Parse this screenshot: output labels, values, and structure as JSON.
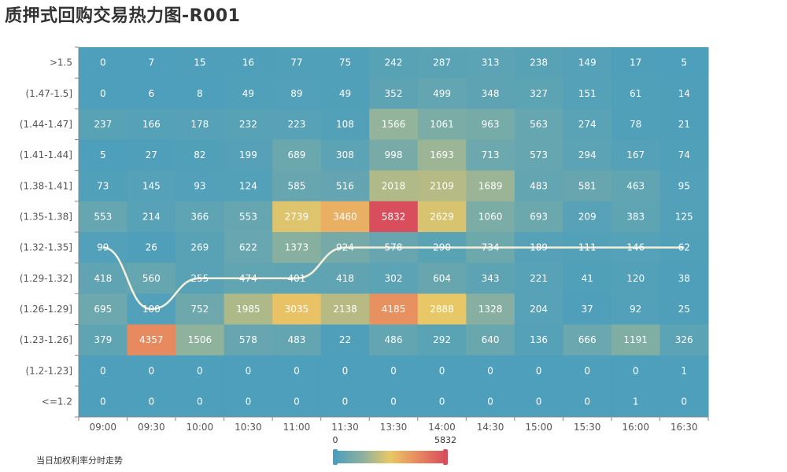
{
  "chart_data": {
    "type": "heatmap",
    "title": "质押式回购交易热力图-R001",
    "x_categories": [
      "09:00",
      "09:30",
      "10:00",
      "10:30",
      "11:00",
      "11:30",
      "13:30",
      "14:00",
      "14:30",
      "15:00",
      "15:30",
      "16:00",
      "16:30"
    ],
    "y_categories": [
      ">1.5",
      "(1.47-1.5]",
      "(1.44-1.47]",
      "(1.41-1.44]",
      "(1.38-1.41]",
      "(1.35-1.38]",
      "(1.32-1.35]",
      "(1.29-1.32]",
      "(1.26-1.29]",
      "(1.23-1.26]",
      "(1.2-1.23]",
      "<=1.2"
    ],
    "values": [
      [
        0,
        7,
        15,
        16,
        77,
        75,
        242,
        287,
        313,
        238,
        149,
        17,
        5
      ],
      [
        0,
        6,
        8,
        49,
        89,
        49,
        352,
        499,
        348,
        327,
        151,
        61,
        14
      ],
      [
        237,
        166,
        178,
        232,
        223,
        108,
        1566,
        1061,
        963,
        563,
        274,
        78,
        21
      ],
      [
        5,
        27,
        82,
        199,
        689,
        308,
        998,
        1693,
        713,
        573,
        294,
        167,
        74
      ],
      [
        73,
        145,
        93,
        124,
        585,
        516,
        2018,
        2109,
        1689,
        483,
        581,
        463,
        95
      ],
      [
        553,
        214,
        366,
        553,
        2739,
        3460,
        5832,
        2629,
        1060,
        693,
        209,
        383,
        125
      ],
      [
        99,
        26,
        269,
        622,
        1373,
        924,
        578,
        290,
        734,
        189,
        111,
        146,
        62
      ],
      [
        418,
        560,
        255,
        474,
        401,
        418,
        302,
        604,
        343,
        221,
        41,
        120,
        38
      ],
      [
        695,
        100,
        752,
        1985,
        3035,
        2138,
        4185,
        2888,
        1328,
        204,
        37,
        92,
        25
      ],
      [
        379,
        4357,
        1506,
        578,
        483,
        22,
        486,
        292,
        640,
        136,
        666,
        1191,
        326
      ],
      [
        0,
        0,
        0,
        0,
        0,
        0,
        0,
        0,
        0,
        0,
        0,
        0,
        1
      ],
      [
        0,
        0,
        0,
        0,
        0,
        0,
        0,
        0,
        0,
        0,
        0,
        1,
        0
      ]
    ],
    "visual_map": {
      "min": 0,
      "max": 5832,
      "min_label": "0",
      "max_label": "5832",
      "colors": [
        "#4e9fbb",
        "#8cb19e",
        "#e9c765",
        "#e8895f",
        "#d94e5d"
      ]
    },
    "line_series": {
      "name": "当日加权利率分时走势",
      "color": "#f5f0dc",
      "y_positions": [
        "(1.32-1.35]",
        "(1.26-1.29]",
        "(1.29-1.32]",
        "(1.29-1.32]",
        "(1.29-1.32]",
        "(1.32-1.35]",
        "(1.32-1.35]",
        "(1.32-1.35]",
        "(1.32-1.35]",
        "(1.32-1.35]",
        "(1.32-1.35]",
        "(1.32-1.35]",
        "(1.32-1.35]"
      ]
    }
  }
}
